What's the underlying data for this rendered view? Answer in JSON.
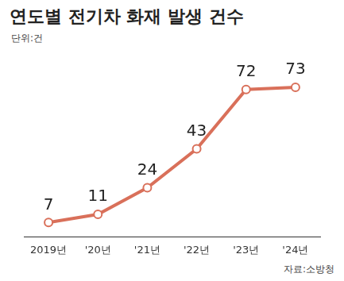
{
  "chart_data": {
    "type": "line",
    "title": "연도별 전기차 화재 발생 건수",
    "subtitle": "단위:건",
    "source": "자료:소방청",
    "categories": [
      "2019년",
      "'20년",
      "'21년",
      "'22년",
      "'23년",
      "'24년"
    ],
    "values": [
      7,
      11,
      24,
      43,
      72,
      73
    ],
    "color": "#d9705a",
    "marker": "circle",
    "line_style": "solid",
    "grid": false,
    "data_labels": true,
    "tick_labels": "x"
  }
}
